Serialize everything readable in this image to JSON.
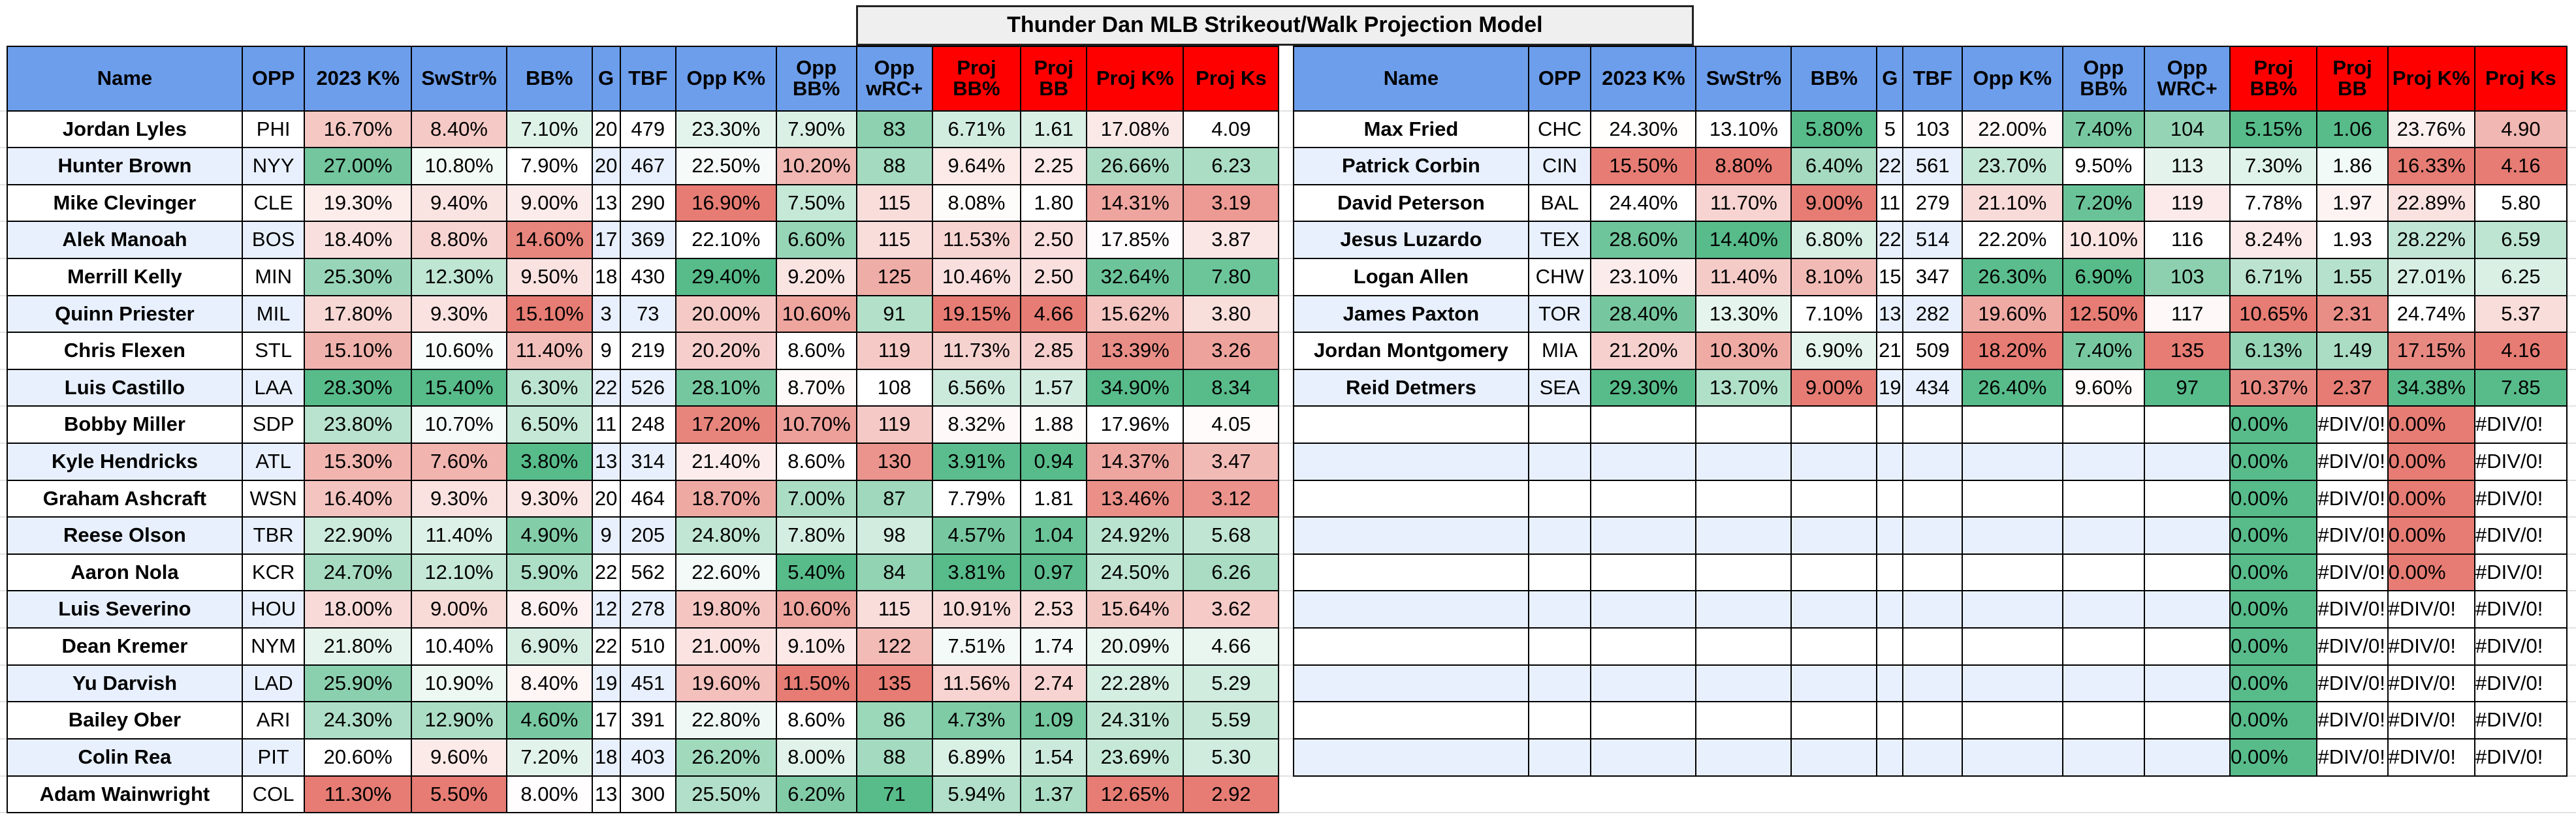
{
  "title": "Thunder Dan MLB Strikeout/Walk Projection Model",
  "tables": [
    {
      "headers": [
        "Name",
        "OPP",
        "2023 K%",
        "SwStr%",
        "BB%",
        "G",
        "TBF",
        "Opp K%",
        "Opp BB%",
        "Opp wRC+",
        "Proj BB%",
        "Proj BB",
        "Proj K%",
        "Proj Ks"
      ],
      "color_scales": [
        null,
        null,
        "green-high",
        "green-high",
        "red-high",
        null,
        null,
        "green-high",
        "red-high",
        "red-high",
        "red-high",
        "red-high",
        "green-high",
        "green-high"
      ],
      "rows": [
        [
          "Jordan Lyles",
          "PHI",
          "16.70%",
          "8.40%",
          "7.10%",
          "20",
          "479",
          "23.30%",
          "7.90%",
          "83",
          "6.71%",
          "1.61",
          "17.08%",
          "4.09"
        ],
        [
          "Hunter Brown",
          "NYY",
          "27.00%",
          "10.80%",
          "7.90%",
          "20",
          "467",
          "22.50%",
          "10.20%",
          "88",
          "9.64%",
          "2.25",
          "26.66%",
          "6.23"
        ],
        [
          "Mike Clevinger",
          "CLE",
          "19.30%",
          "9.40%",
          "9.00%",
          "13",
          "290",
          "16.90%",
          "7.50%",
          "115",
          "8.08%",
          "1.80",
          "14.31%",
          "3.19"
        ],
        [
          "Alek Manoah",
          "BOS",
          "18.40%",
          "8.80%",
          "14.60%",
          "17",
          "369",
          "22.10%",
          "6.60%",
          "115",
          "11.53%",
          "2.50",
          "17.85%",
          "3.87"
        ],
        [
          "Merrill Kelly",
          "MIN",
          "25.30%",
          "12.30%",
          "9.50%",
          "18",
          "430",
          "29.40%",
          "9.20%",
          "125",
          "10.46%",
          "2.50",
          "32.64%",
          "7.80"
        ],
        [
          "Quinn Priester",
          "MIL",
          "17.80%",
          "9.30%",
          "15.10%",
          "3",
          "73",
          "20.00%",
          "10.60%",
          "91",
          "19.15%",
          "4.66",
          "15.62%",
          "3.80"
        ],
        [
          "Chris Flexen",
          "STL",
          "15.10%",
          "10.60%",
          "11.40%",
          "9",
          "219",
          "20.20%",
          "8.60%",
          "119",
          "11.73%",
          "2.85",
          "13.39%",
          "3.26"
        ],
        [
          "Luis Castillo",
          "LAA",
          "28.30%",
          "15.40%",
          "6.30%",
          "22",
          "526",
          "28.10%",
          "8.70%",
          "108",
          "6.56%",
          "1.57",
          "34.90%",
          "8.34"
        ],
        [
          "Bobby Miller",
          "SDP",
          "23.80%",
          "10.70%",
          "6.50%",
          "11",
          "248",
          "17.20%",
          "10.70%",
          "119",
          "8.32%",
          "1.88",
          "17.96%",
          "4.05"
        ],
        [
          "Kyle Hendricks",
          "ATL",
          "15.30%",
          "7.60%",
          "3.80%",
          "13",
          "314",
          "21.40%",
          "8.60%",
          "130",
          "3.91%",
          "0.94",
          "14.37%",
          "3.47"
        ],
        [
          "Graham Ashcraft",
          "WSN",
          "16.40%",
          "9.30%",
          "9.30%",
          "20",
          "464",
          "18.70%",
          "7.00%",
          "87",
          "7.79%",
          "1.81",
          "13.46%",
          "3.12"
        ],
        [
          "Reese Olson",
          "TBR",
          "22.90%",
          "11.40%",
          "4.90%",
          "9",
          "205",
          "24.80%",
          "7.80%",
          "98",
          "4.57%",
          "1.04",
          "24.92%",
          "5.68"
        ],
        [
          "Aaron Nola",
          "KCR",
          "24.70%",
          "12.10%",
          "5.90%",
          "22",
          "562",
          "22.60%",
          "5.40%",
          "84",
          "3.81%",
          "0.97",
          "24.50%",
          "6.26"
        ],
        [
          "Luis Severino",
          "HOU",
          "18.00%",
          "9.00%",
          "8.60%",
          "12",
          "278",
          "19.80%",
          "10.60%",
          "115",
          "10.91%",
          "2.53",
          "15.64%",
          "3.62"
        ],
        [
          "Dean Kremer",
          "NYM",
          "21.80%",
          "10.40%",
          "6.90%",
          "22",
          "510",
          "21.00%",
          "9.10%",
          "122",
          "7.51%",
          "1.74",
          "20.09%",
          "4.66"
        ],
        [
          "Yu Darvish",
          "LAD",
          "25.90%",
          "10.90%",
          "8.40%",
          "19",
          "451",
          "19.60%",
          "11.50%",
          "135",
          "11.56%",
          "2.74",
          "22.28%",
          "5.29"
        ],
        [
          "Bailey Ober",
          "ARI",
          "24.30%",
          "12.90%",
          "4.60%",
          "17",
          "391",
          "22.80%",
          "8.60%",
          "86",
          "4.73%",
          "1.09",
          "24.31%",
          "5.59"
        ],
        [
          "Colin Rea",
          "PIT",
          "20.60%",
          "9.60%",
          "7.20%",
          "18",
          "403",
          "26.20%",
          "8.00%",
          "88",
          "6.89%",
          "1.54",
          "23.69%",
          "5.30"
        ],
        [
          "Adam Wainwright",
          "COL",
          "11.30%",
          "5.50%",
          "8.00%",
          "13",
          "300",
          "25.50%",
          "6.20%",
          "71",
          "5.94%",
          "1.37",
          "12.65%",
          "2.92"
        ]
      ]
    },
    {
      "headers": [
        "Name",
        "OPP",
        "2023 K%",
        "SwStr%",
        "BB%",
        "G",
        "TBF",
        "Opp K%",
        "Opp BB%",
        "Opp WRC+",
        "Proj BB%",
        "Proj BB",
        "Proj K%",
        "Proj Ks"
      ],
      "color_scales": [
        null,
        null,
        "green-high",
        "green-high",
        "red-high",
        null,
        null,
        "green-high",
        "red-high",
        "red-high",
        "red-high",
        "red-high",
        "green-high",
        "green-high"
      ],
      "rows": [
        [
          "Max Fried",
          "CHC",
          "24.30%",
          "13.10%",
          "5.80%",
          "5",
          "103",
          "22.00%",
          "7.40%",
          "104",
          "5.15%",
          "1.06",
          "23.76%",
          "4.90"
        ],
        [
          "Patrick Corbin",
          "CIN",
          "15.50%",
          "8.80%",
          "6.40%",
          "22",
          "561",
          "23.70%",
          "9.50%",
          "113",
          "7.30%",
          "1.86",
          "16.33%",
          "4.16"
        ],
        [
          "David Peterson",
          "BAL",
          "24.40%",
          "11.70%",
          "9.00%",
          "11",
          "279",
          "21.10%",
          "7.20%",
          "119",
          "7.78%",
          "1.97",
          "22.89%",
          "5.80"
        ],
        [
          "Jesus Luzardo",
          "TEX",
          "28.60%",
          "14.40%",
          "6.80%",
          "22",
          "514",
          "22.20%",
          "10.10%",
          "116",
          "8.24%",
          "1.93",
          "28.22%",
          "6.59"
        ],
        [
          "Logan Allen",
          "CHW",
          "23.10%",
          "11.40%",
          "8.10%",
          "15",
          "347",
          "26.30%",
          "6.90%",
          "103",
          "6.71%",
          "1.55",
          "27.01%",
          "6.25"
        ],
        [
          "James Paxton",
          "TOR",
          "28.40%",
          "13.30%",
          "7.10%",
          "13",
          "282",
          "19.60%",
          "12.50%",
          "117",
          "10.65%",
          "2.31",
          "24.74%",
          "5.37"
        ],
        [
          "Jordan Montgomery",
          "MIA",
          "21.20%",
          "10.30%",
          "6.90%",
          "21",
          "509",
          "18.20%",
          "7.40%",
          "135",
          "6.13%",
          "1.49",
          "17.15%",
          "4.16"
        ],
        [
          "Reid Detmers",
          "SEA",
          "29.30%",
          "13.70%",
          "9.00%",
          "19",
          "434",
          "26.40%",
          "9.60%",
          "97",
          "10.37%",
          "2.37",
          "34.38%",
          "7.85"
        ]
      ],
      "error_rows": [
        [
          "0.00%",
          "#DIV/0!",
          "0.00%",
          "#DIV/0!"
        ],
        [
          "0.00%",
          "#DIV/0!",
          "0.00%",
          "#DIV/0!"
        ],
        [
          "0.00%",
          "#DIV/0!",
          "0.00%",
          "#DIV/0!"
        ],
        [
          "0.00%",
          "#DIV/0!",
          "0.00%",
          "#DIV/0!"
        ],
        [
          "0.00%",
          "#DIV/0!",
          "0.00%",
          "#DIV/0!"
        ],
        [
          "0.00%",
          "#DIV/0!",
          "#DIV/0!",
          "#DIV/0!"
        ],
        [
          "0.00%",
          "#DIV/0!",
          "#DIV/0!",
          "#DIV/0!"
        ],
        [
          "0.00%",
          "#DIV/0!",
          "#DIV/0!",
          "#DIV/0!"
        ],
        [
          "0.00%",
          "#DIV/0!",
          "#DIV/0!",
          "#DIV/0!"
        ],
        [
          "0.00%",
          "#DIV/0!",
          "#DIV/0!",
          "#DIV/0!"
        ]
      ]
    }
  ]
}
